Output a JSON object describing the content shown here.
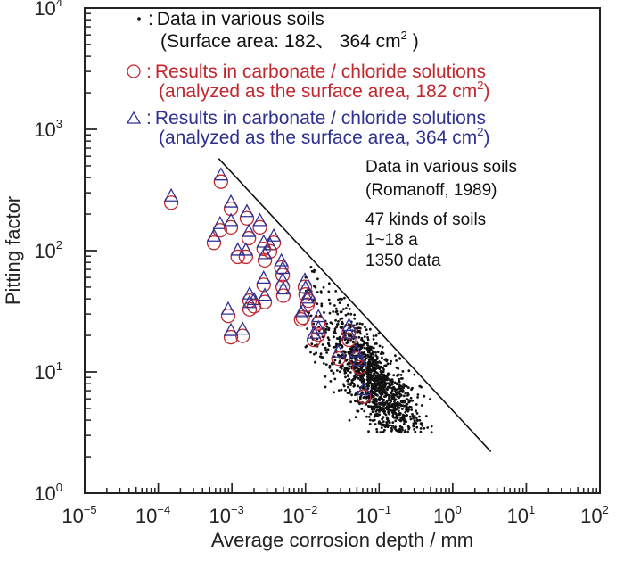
{
  "chart_data": {
    "type": "scatter",
    "title": "",
    "xlabel": "Average corrosion depth / mm",
    "ylabel": "Pitting factor",
    "xscale": "log",
    "yscale": "log",
    "xlim": [
      1e-05,
      100
    ],
    "ylim": [
      1,
      10000
    ],
    "grid": false,
    "x_ticks": [
      {
        "base": "10",
        "exp": "−5"
      },
      {
        "base": "10",
        "exp": "−4"
      },
      {
        "base": "10",
        "exp": "−3"
      },
      {
        "base": "10",
        "exp": "−2"
      },
      {
        "base": "10",
        "exp": "−1"
      },
      {
        "base": "10",
        "exp": "0"
      },
      {
        "base": "10",
        "exp": "1"
      },
      {
        "base": "10",
        "exp": "2"
      }
    ],
    "y_ticks": [
      {
        "base": "10",
        "exp": "0"
      },
      {
        "base": "10",
        "exp": "1"
      },
      {
        "base": "10",
        "exp": "2"
      },
      {
        "base": "10",
        "exp": "3"
      },
      {
        "base": "10",
        "exp": "4"
      }
    ],
    "legend": {
      "placement": "top",
      "entries": [
        {
          "marker": "dot",
          "color": "#111111",
          "line1": "Data in various soils",
          "line2": "(Surface area: 182、 364 cm",
          "line2_sup": "2",
          "line2_end": " )"
        },
        {
          "marker": "circle",
          "color": "#c1272d",
          "line1": "Results in carbonate / chloride solutions",
          "line2": "(analyzed as the surface area, 182 cm",
          "line2_sup": "2",
          "line2_end": ")"
        },
        {
          "marker": "triangle",
          "color": "#2e3192",
          "line1": "Results in carbonate / chloride solutions",
          "line2": "(analyzed as the surface area, 364 cm",
          "line2_sup": "2",
          "line2_end": ")"
        }
      ],
      "separator": ":"
    },
    "annotations": [
      "Data in various soils",
      "(Romanoff, 1989)",
      "47 kinds of soils",
      "1~18 a",
      "1350 data"
    ],
    "reference_line": {
      "points": [
        [
          0.00066,
          575
        ],
        [
          3.3,
          2.2
        ]
      ],
      "color": "#111111"
    },
    "soil_data": {
      "count": 1350
    },
    "solution_results": [
      [
        0.00015,
        257
      ],
      [
        0.00071,
        383
      ],
      [
        0.00097,
        229
      ],
      [
        0.00069,
        152
      ],
      [
        0.00057,
        120
      ],
      [
        0.00097,
        161
      ],
      [
        0.0016,
        191
      ],
      [
        0.0024,
        161
      ],
      [
        0.0017,
        131
      ],
      [
        0.0012,
        92
      ],
      [
        0.00155,
        92
      ],
      [
        0.0027,
        107
      ],
      [
        0.0033,
        102
      ],
      [
        0.0028,
        86
      ],
      [
        0.0037,
        120
      ],
      [
        0.0047,
        75
      ],
      [
        0.0049,
        65
      ],
      [
        0.0027,
        54
      ],
      [
        0.0049,
        52
      ],
      [
        0.005,
        44
      ],
      [
        0.00174,
        40
      ],
      [
        0.002,
        36
      ],
      [
        0.0028,
        39
      ],
      [
        0.00174,
        34
      ],
      [
        0.00089,
        30
      ],
      [
        0.00097,
        20
      ],
      [
        0.0014,
        20.5
      ],
      [
        0.0098,
        52
      ],
      [
        0.01,
        45
      ],
      [
        0.0106,
        37
      ],
      [
        0.0087,
        28
      ],
      [
        0.015,
        26
      ],
      [
        0.015,
        21
      ],
      [
        0.013,
        19
      ],
      [
        0.011,
        40
      ],
      [
        0.0092,
        29
      ],
      [
        0.039,
        22
      ],
      [
        0.039,
        19
      ],
      [
        0.028,
        13.3
      ],
      [
        0.049,
        13.3
      ],
      [
        0.054,
        11.3
      ],
      [
        0.062,
        6.5
      ]
    ]
  }
}
